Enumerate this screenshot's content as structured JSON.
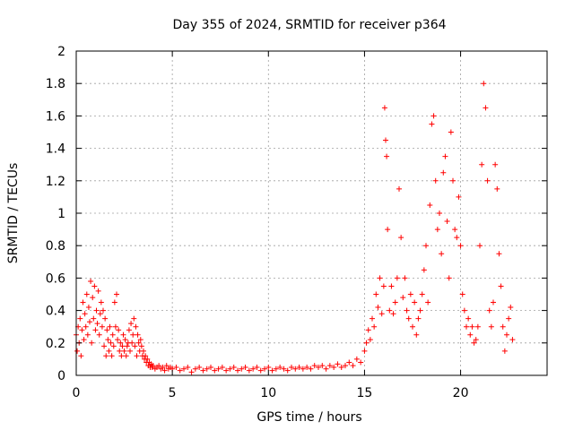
{
  "chart_data": {
    "type": "scatter",
    "title": "Day 355 of 2024, SRMTID for receiver p364",
    "xlabel": "GPS time / hours",
    "ylabel": "SRMTID / TECUs",
    "xlim": [
      0,
      24.5
    ],
    "ylim": [
      0,
      2
    ],
    "xticks": [
      0,
      5,
      10,
      15,
      20
    ],
    "xtick_labels": [
      "0",
      "5",
      "10",
      "15",
      "20"
    ],
    "yticks": [
      0,
      0.2,
      0.4,
      0.6,
      0.8,
      1,
      1.2,
      1.4,
      1.6,
      1.8,
      2
    ],
    "ytick_labels": [
      "0",
      "0.2",
      "0.4",
      "0.6",
      "0.8",
      "1",
      "1.2",
      "1.4",
      "1.6",
      "1.8",
      "2"
    ],
    "grid": true,
    "marker": "+",
    "color": "#ff0000",
    "series": [
      {
        "name": "SRMTID",
        "points": [
          [
            0.0,
            0.25
          ],
          [
            0.05,
            0.15
          ],
          [
            0.1,
            0.3
          ],
          [
            0.15,
            0.2
          ],
          [
            0.2,
            0.35
          ],
          [
            0.25,
            0.12
          ],
          [
            0.3,
            0.28
          ],
          [
            0.35,
            0.45
          ],
          [
            0.4,
            0.22
          ],
          [
            0.45,
            0.38
          ],
          [
            0.5,
            0.3
          ],
          [
            0.55,
            0.5
          ],
          [
            0.6,
            0.25
          ],
          [
            0.65,
            0.42
          ],
          [
            0.7,
            0.33
          ],
          [
            0.75,
            0.58
          ],
          [
            0.8,
            0.2
          ],
          [
            0.85,
            0.48
          ],
          [
            0.9,
            0.35
          ],
          [
            0.95,
            0.55
          ],
          [
            1.0,
            0.28
          ],
          [
            1.05,
            0.4
          ],
          [
            1.1,
            0.32
          ],
          [
            1.15,
            0.52
          ],
          [
            1.2,
            0.25
          ],
          [
            1.25,
            0.38
          ],
          [
            1.3,
            0.45
          ],
          [
            1.35,
            0.3
          ],
          [
            1.4,
            0.4
          ],
          [
            1.45,
            0.18
          ],
          [
            1.5,
            0.35
          ],
          [
            1.55,
            0.12
          ],
          [
            1.6,
            0.28
          ],
          [
            1.65,
            0.22
          ],
          [
            1.7,
            0.15
          ],
          [
            1.75,
            0.3
          ],
          [
            1.8,
            0.2
          ],
          [
            1.85,
            0.12
          ],
          [
            1.9,
            0.25
          ],
          [
            1.95,
            0.18
          ],
          [
            2.0,
            0.45
          ],
          [
            2.05,
            0.3
          ],
          [
            2.1,
            0.5
          ],
          [
            2.15,
            0.22
          ],
          [
            2.2,
            0.28
          ],
          [
            2.25,
            0.15
          ],
          [
            2.3,
            0.2
          ],
          [
            2.35,
            0.12
          ],
          [
            2.4,
            0.18
          ],
          [
            2.45,
            0.25
          ],
          [
            2.5,
            0.15
          ],
          [
            2.55,
            0.22
          ],
          [
            2.6,
            0.12
          ],
          [
            2.65,
            0.18
          ],
          [
            2.7,
            0.2
          ],
          [
            2.75,
            0.28
          ],
          [
            2.8,
            0.15
          ],
          [
            2.85,
            0.32
          ],
          [
            2.9,
            0.2
          ],
          [
            2.95,
            0.25
          ],
          [
            3.0,
            0.35
          ],
          [
            3.05,
            0.18
          ],
          [
            3.1,
            0.3
          ],
          [
            3.15,
            0.12
          ],
          [
            3.2,
            0.25
          ],
          [
            3.25,
            0.2
          ],
          [
            3.3,
            0.15
          ],
          [
            3.35,
            0.22
          ],
          [
            3.4,
            0.18
          ],
          [
            3.45,
            0.12
          ],
          [
            3.5,
            0.15
          ],
          [
            3.55,
            0.1
          ],
          [
            3.6,
            0.12
          ],
          [
            3.65,
            0.08
          ],
          [
            3.7,
            0.1
          ],
          [
            3.75,
            0.06
          ],
          [
            3.8,
            0.08
          ],
          [
            3.85,
            0.05
          ],
          [
            3.9,
            0.07
          ],
          [
            3.95,
            0.05
          ],
          [
            4.0,
            0.06
          ],
          [
            4.1,
            0.04
          ],
          [
            4.2,
            0.05
          ],
          [
            4.3,
            0.06
          ],
          [
            4.4,
            0.04
          ],
          [
            4.5,
            0.05
          ],
          [
            4.6,
            0.03
          ],
          [
            4.7,
            0.06
          ],
          [
            4.8,
            0.04
          ],
          [
            4.9,
            0.05
          ],
          [
            5.0,
            0.04
          ],
          [
            5.2,
            0.05
          ],
          [
            5.4,
            0.03
          ],
          [
            5.6,
            0.04
          ],
          [
            5.8,
            0.05
          ],
          [
            6.0,
            0.02
          ],
          [
            6.2,
            0.04
          ],
          [
            6.4,
            0.05
          ],
          [
            6.6,
            0.03
          ],
          [
            6.8,
            0.04
          ],
          [
            7.0,
            0.05
          ],
          [
            7.2,
            0.03
          ],
          [
            7.4,
            0.04
          ],
          [
            7.6,
            0.05
          ],
          [
            7.8,
            0.03
          ],
          [
            8.0,
            0.04
          ],
          [
            8.2,
            0.05
          ],
          [
            8.4,
            0.03
          ],
          [
            8.6,
            0.04
          ],
          [
            8.8,
            0.05
          ],
          [
            9.0,
            0.03
          ],
          [
            9.2,
            0.04
          ],
          [
            9.4,
            0.05
          ],
          [
            9.6,
            0.03
          ],
          [
            9.8,
            0.04
          ],
          [
            10.0,
            0.05
          ],
          [
            10.2,
            0.03
          ],
          [
            10.4,
            0.04
          ],
          [
            10.6,
            0.05
          ],
          [
            10.8,
            0.04
          ],
          [
            11.0,
            0.03
          ],
          [
            11.2,
            0.05
          ],
          [
            11.4,
            0.04
          ],
          [
            11.6,
            0.05
          ],
          [
            11.8,
            0.04
          ],
          [
            12.0,
            0.05
          ],
          [
            12.2,
            0.04
          ],
          [
            12.4,
            0.06
          ],
          [
            12.6,
            0.05
          ],
          [
            12.8,
            0.06
          ],
          [
            13.0,
            0.04
          ],
          [
            13.2,
            0.06
          ],
          [
            13.4,
            0.05
          ],
          [
            13.6,
            0.07
          ],
          [
            13.8,
            0.05
          ],
          [
            14.0,
            0.06
          ],
          [
            14.2,
            0.08
          ],
          [
            14.4,
            0.06
          ],
          [
            14.6,
            0.1
          ],
          [
            14.8,
            0.08
          ],
          [
            15.0,
            0.15
          ],
          [
            15.1,
            0.2
          ],
          [
            15.2,
            0.28
          ],
          [
            15.3,
            0.22
          ],
          [
            15.4,
            0.35
          ],
          [
            15.5,
            0.3
          ],
          [
            15.6,
            0.5
          ],
          [
            15.7,
            0.42
          ],
          [
            15.8,
            0.6
          ],
          [
            15.9,
            0.38
          ],
          [
            16.0,
            0.55
          ],
          [
            16.05,
            1.65
          ],
          [
            16.1,
            1.45
          ],
          [
            16.15,
            1.35
          ],
          [
            16.2,
            0.9
          ],
          [
            16.3,
            0.4
          ],
          [
            16.4,
            0.55
          ],
          [
            16.5,
            0.38
          ],
          [
            16.6,
            0.45
          ],
          [
            16.7,
            0.6
          ],
          [
            16.8,
            1.15
          ],
          [
            16.9,
            0.85
          ],
          [
            17.0,
            0.48
          ],
          [
            17.1,
            0.6
          ],
          [
            17.2,
            0.4
          ],
          [
            17.3,
            0.35
          ],
          [
            17.4,
            0.5
          ],
          [
            17.5,
            0.3
          ],
          [
            17.6,
            0.45
          ],
          [
            17.7,
            0.25
          ],
          [
            17.8,
            0.35
          ],
          [
            17.9,
            0.4
          ],
          [
            18.0,
            0.5
          ],
          [
            18.1,
            0.65
          ],
          [
            18.2,
            0.8
          ],
          [
            18.3,
            0.45
          ],
          [
            18.4,
            1.05
          ],
          [
            18.5,
            1.55
          ],
          [
            18.6,
            1.6
          ],
          [
            18.7,
            1.2
          ],
          [
            18.8,
            0.9
          ],
          [
            18.9,
            1.0
          ],
          [
            19.0,
            0.75
          ],
          [
            19.1,
            1.25
          ],
          [
            19.2,
            1.35
          ],
          [
            19.3,
            0.95
          ],
          [
            19.4,
            0.6
          ],
          [
            19.5,
            1.5
          ],
          [
            19.6,
            1.2
          ],
          [
            19.7,
            0.9
          ],
          [
            19.8,
            0.85
          ],
          [
            19.9,
            1.1
          ],
          [
            20.0,
            0.8
          ],
          [
            20.1,
            0.5
          ],
          [
            20.2,
            0.4
          ],
          [
            20.3,
            0.3
          ],
          [
            20.4,
            0.35
          ],
          [
            20.5,
            0.25
          ],
          [
            20.6,
            0.3
          ],
          [
            20.7,
            0.2
          ],
          [
            20.8,
            0.22
          ],
          [
            20.9,
            0.3
          ],
          [
            21.0,
            0.8
          ],
          [
            21.1,
            1.3
          ],
          [
            21.2,
            1.8
          ],
          [
            21.3,
            1.65
          ],
          [
            21.4,
            1.2
          ],
          [
            21.5,
            0.4
          ],
          [
            21.6,
            0.3
          ],
          [
            21.7,
            0.45
          ],
          [
            21.8,
            1.3
          ],
          [
            21.9,
            1.15
          ],
          [
            22.0,
            0.75
          ],
          [
            22.1,
            0.55
          ],
          [
            22.2,
            0.3
          ],
          [
            22.3,
            0.15
          ],
          [
            22.4,
            0.25
          ],
          [
            22.5,
            0.35
          ],
          [
            22.6,
            0.42
          ],
          [
            22.7,
            0.22
          ]
        ]
      }
    ]
  }
}
